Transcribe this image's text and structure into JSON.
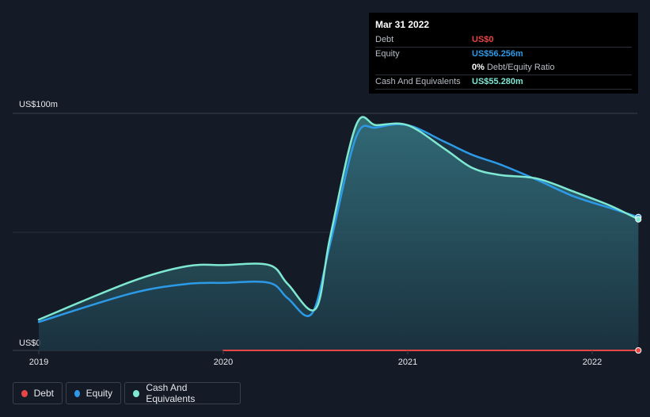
{
  "tooltip": {
    "date": "Mar 31 2022",
    "rows": [
      {
        "label": "Debt",
        "value": "US$0",
        "color": "#e84545"
      },
      {
        "label": "Equity",
        "value": "US$56.256m",
        "color": "#2d9ae8"
      },
      {
        "label": "",
        "value": "0%",
        "suffix": "Debt/Equity Ratio",
        "color": "#ffffff"
      },
      {
        "label": "Cash And Equivalents",
        "value": "US$55.280m",
        "color": "#7ee8d2"
      }
    ]
  },
  "legend": [
    {
      "label": "Debt",
      "color": "#e84545"
    },
    {
      "label": "Equity",
      "color": "#2d9ae8"
    },
    {
      "label": "Cash And Equivalents",
      "color": "#7ee8d2"
    }
  ],
  "chart_data": {
    "type": "area",
    "title": "",
    "xlabel": "",
    "ylabel": "",
    "y_top_label": "US$100m",
    "y_bottom_label": "US$0",
    "ylim": [
      0,
      100
    ],
    "xlim": [
      2019.0,
      2022.25
    ],
    "x_ticks": [
      "2019",
      "2020",
      "2021",
      "2022"
    ],
    "series": [
      {
        "name": "Debt",
        "color": "#e84545",
        "points": [
          [
            2020.0,
            0
          ],
          [
            2022.25,
            0
          ]
        ]
      },
      {
        "name": "Equity",
        "color": "#2d9ae8",
        "points": [
          [
            2019.0,
            12
          ],
          [
            2019.5,
            24
          ],
          [
            2019.8,
            28
          ],
          [
            2020.0,
            28.5
          ],
          [
            2020.25,
            28.5
          ],
          [
            2020.35,
            22
          ],
          [
            2020.48,
            15.5
          ],
          [
            2020.58,
            45
          ],
          [
            2020.72,
            90
          ],
          [
            2020.83,
            94
          ],
          [
            2021.0,
            95
          ],
          [
            2021.2,
            88
          ],
          [
            2021.35,
            82.5
          ],
          [
            2021.5,
            78.5
          ],
          [
            2021.7,
            72
          ],
          [
            2021.9,
            65
          ],
          [
            2022.1,
            60
          ],
          [
            2022.25,
            56.256
          ]
        ]
      },
      {
        "name": "Cash And Equivalents",
        "color": "#7ee8d2",
        "points": [
          [
            2019.0,
            13
          ],
          [
            2019.5,
            29
          ],
          [
            2019.8,
            35.5
          ],
          [
            2020.0,
            36
          ],
          [
            2020.25,
            36
          ],
          [
            2020.35,
            28
          ],
          [
            2020.5,
            17.5
          ],
          [
            2020.58,
            48
          ],
          [
            2020.72,
            95
          ],
          [
            2020.83,
            95
          ],
          [
            2021.0,
            95
          ],
          [
            2021.2,
            85
          ],
          [
            2021.35,
            77
          ],
          [
            2021.5,
            74
          ],
          [
            2021.7,
            72.5
          ],
          [
            2021.9,
            67
          ],
          [
            2022.1,
            61
          ],
          [
            2022.25,
            55.28
          ]
        ]
      }
    ]
  }
}
